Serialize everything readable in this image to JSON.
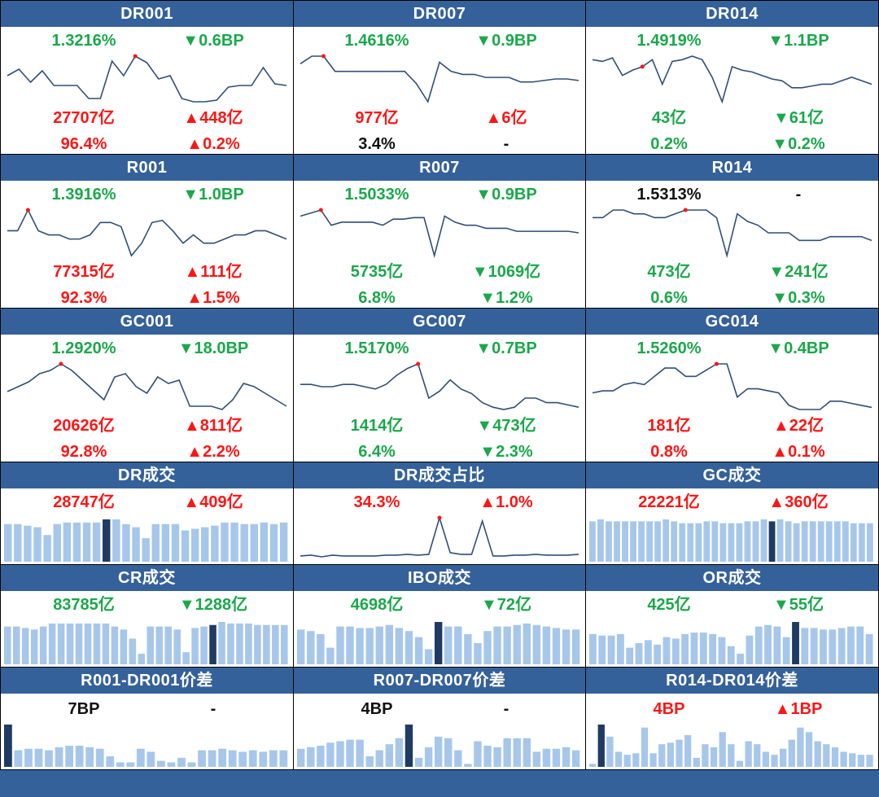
{
  "colors": {
    "header": "#35619a",
    "red": "#ff1515",
    "green": "#1aa84a",
    "line": "#2f4f78",
    "bar": "#a7c7ea",
    "bar_dark": "#1f3b63",
    "dot": "#ff1515"
  },
  "rate_panels": [
    {
      "id": "dr001",
      "title": "DR001",
      "rate": "1.3216%",
      "rate_color": "green",
      "bp": "▼0.6BP",
      "bp_color": "green",
      "vol": "27707亿",
      "vol_color": "red",
      "vol_chg": "▲448亿",
      "vol_chg_color": "red",
      "share": "96.4%",
      "share_color": "red",
      "share_chg": "▲0.2%",
      "share_chg_color": "red",
      "series": [
        62,
        66,
        58,
        65,
        56,
        56,
        56,
        48,
        48,
        71,
        62,
        74,
        70,
        60,
        62,
        48,
        46,
        46,
        47,
        55,
        56,
        56,
        67,
        57,
        56
      ],
      "peak": 11
    },
    {
      "id": "dr007",
      "title": "DR007",
      "rate": "1.4616%",
      "rate_color": "green",
      "bp": "▼0.9BP",
      "bp_color": "green",
      "vol": "977亿",
      "vol_color": "red",
      "vol_chg": "▲6亿",
      "vol_chg_color": "red",
      "share": "3.4%",
      "share_color": "neutral",
      "share_chg": "-",
      "share_chg_color": "neutral",
      "series": [
        67,
        72,
        72,
        62,
        62,
        62,
        62,
        62,
        62,
        62,
        54,
        42,
        68,
        62,
        60,
        60,
        58,
        58,
        58,
        55,
        55,
        56,
        57,
        57,
        56
      ],
      "peak": 2
    },
    {
      "id": "dr014",
      "title": "DR014",
      "rate": "1.4919%",
      "rate_color": "green",
      "bp": "▼1.1BP",
      "bp_color": "green",
      "vol": "43亿",
      "vol_color": "green",
      "vol_chg": "▼61亿",
      "vol_chg_color": "green",
      "share": "0.2%",
      "share_color": "green",
      "share_chg": "▼0.2%",
      "share_chg_color": "green",
      "series": [
        72,
        71,
        73,
        63,
        66,
        68,
        72,
        58,
        71,
        72,
        74,
        72,
        62,
        48,
        68,
        66,
        65,
        63,
        61,
        60,
        56,
        56,
        57,
        58,
        58,
        60,
        62,
        60,
        58
      ],
      "peak": 5
    },
    {
      "id": "r001",
      "title": "R001",
      "rate": "1.3916%",
      "rate_color": "green",
      "bp": "▼1.0BP",
      "bp_color": "green",
      "vol": "77315亿",
      "vol_color": "red",
      "vol_chg": "▲111亿",
      "vol_chg_color": "red",
      "share": "92.3%",
      "share_color": "red",
      "share_chg": "▲1.5%",
      "share_chg_color": "red",
      "series": [
        62,
        62,
        72,
        62,
        60,
        60,
        58,
        58,
        60,
        66,
        66,
        64,
        50,
        56,
        66,
        67,
        62,
        56,
        60,
        56,
        56,
        58,
        60,
        60,
        62,
        62,
        60,
        58
      ],
      "peak": 2
    },
    {
      "id": "r007",
      "title": "R007",
      "rate": "1.5033%",
      "rate_color": "green",
      "bp": "▼0.9BP",
      "bp_color": "green",
      "vol": "5735亿",
      "vol_color": "green",
      "vol_chg": "▼1069亿",
      "vol_chg_color": "green",
      "share": "6.8%",
      "share_color": "green",
      "share_chg": "▼1.2%",
      "share_chg_color": "green",
      "series": [
        68,
        70,
        72,
        62,
        64,
        64,
        64,
        64,
        62,
        66,
        66,
        67,
        67,
        42,
        68,
        64,
        62,
        62,
        60,
        60,
        60,
        58,
        58,
        58,
        58,
        58,
        58,
        57
      ],
      "peak": 2
    },
    {
      "id": "r014",
      "title": "R014",
      "rate": "1.5313%",
      "rate_color": "neutral",
      "bp": "-",
      "bp_color": "neutral",
      "vol": "473亿",
      "vol_color": "green",
      "vol_chg": "▼241亿",
      "vol_chg_color": "green",
      "share": "0.6%",
      "share_color": "green",
      "share_chg": "▼0.3%",
      "share_chg_color": "green",
      "series": [
        66,
        66,
        68,
        68,
        67,
        67,
        66,
        66,
        67,
        68,
        68,
        68,
        66,
        56,
        67,
        65,
        64,
        62,
        62,
        62,
        60,
        60,
        60,
        61,
        61,
        61,
        61,
        60
      ],
      "peak": 9
    },
    {
      "id": "gc001",
      "title": "GC001",
      "rate": "1.2920%",
      "rate_color": "green",
      "bp": "▼18.0BP",
      "bp_color": "green",
      "vol": "20626亿",
      "vol_color": "red",
      "vol_chg": "▲811亿",
      "vol_chg_color": "red",
      "share": "92.8%",
      "share_color": "red",
      "share_chg": "▲2.2%",
      "share_chg_color": "red",
      "series": [
        63,
        66,
        69,
        74,
        76,
        80,
        76,
        70,
        64,
        58,
        72,
        74,
        66,
        62,
        72,
        68,
        70,
        54,
        54,
        54,
        52,
        58,
        68,
        66,
        62,
        58,
        54
      ],
      "peak": 5
    },
    {
      "id": "gc007",
      "title": "GC007",
      "rate": "1.5170%",
      "rate_color": "green",
      "bp": "▼0.7BP",
      "bp_color": "green",
      "vol": "1414亿",
      "vol_color": "green",
      "vol_chg": "▼473亿",
      "vol_chg_color": "green",
      "share": "6.4%",
      "share_color": "green",
      "share_chg": "▼2.3%",
      "share_chg_color": "green",
      "series": [
        66,
        66,
        65,
        65,
        66,
        66,
        65,
        64,
        66,
        70,
        73,
        75,
        60,
        63,
        68,
        64,
        62,
        58,
        56,
        55,
        56,
        60,
        60,
        58,
        58,
        57,
        56
      ],
      "peak": 11
    },
    {
      "id": "gc014",
      "title": "GC014",
      "rate": "1.5260%",
      "rate_color": "green",
      "bp": "▼0.4BP",
      "bp_color": "green",
      "vol": "181亿",
      "vol_color": "red",
      "vol_chg": "▲22亿",
      "vol_chg_color": "red",
      "share": "0.8%",
      "share_color": "red",
      "share_chg": "▲0.1%",
      "share_chg_color": "red",
      "series": [
        62,
        63,
        63,
        66,
        67,
        66,
        70,
        74,
        74,
        70,
        70,
        73,
        76,
        76,
        60,
        64,
        64,
        63,
        62,
        56,
        54,
        54,
        54,
        58,
        58,
        57,
        56,
        55
      ],
      "peak": 12
    }
  ],
  "volume_panels": [
    {
      "id": "dr-vol",
      "title": "DR成交",
      "kind": "bar",
      "val1": "28747亿",
      "val1_color": "red",
      "val2": "▲409亿",
      "val2_color": "red",
      "bars": [
        48,
        48,
        46,
        44,
        34,
        48,
        50,
        50,
        50,
        50,
        54,
        54,
        48,
        44,
        30,
        48,
        48,
        48,
        40,
        42,
        44,
        46,
        50,
        50,
        48,
        48,
        50,
        48,
        50
      ],
      "highlight": 10
    },
    {
      "id": "dr-share",
      "title": "DR成交占比",
      "kind": "line",
      "val1": "34.3%",
      "val1_color": "red",
      "val2": "▲1.0%",
      "val2_color": "red",
      "series": [
        6,
        7,
        5,
        7,
        6,
        6,
        6,
        6,
        7,
        7,
        8,
        7,
        8,
        52,
        10,
        8,
        8,
        48,
        6,
        6,
        7,
        7,
        8,
        7,
        7,
        7,
        8
      ],
      "peak": 13
    },
    {
      "id": "gc-vol",
      "title": "GC成交",
      "kind": "bar",
      "val1": "22221亿",
      "val1_color": "red",
      "val2": "▲360亿",
      "val2_color": "red",
      "bars": [
        42,
        44,
        42,
        42,
        42,
        42,
        42,
        42,
        42,
        44,
        42,
        40,
        40,
        40,
        42,
        42,
        40,
        40,
        40,
        42,
        42,
        44,
        42,
        44,
        42,
        40,
        42,
        42,
        42,
        42,
        42,
        42,
        40,
        40,
        40
      ],
      "highlight": 22
    },
    {
      "id": "cr-vol",
      "title": "CR成交",
      "kind": "bar",
      "val1": "83785亿",
      "val1_color": "green",
      "val2": "▼1288亿",
      "val2_color": "green",
      "bars": [
        50,
        50,
        48,
        46,
        50,
        54,
        54,
        54,
        54,
        54,
        54,
        54,
        50,
        46,
        34,
        14,
        50,
        50,
        50,
        46,
        16,
        48,
        50,
        52,
        56,
        54,
        54,
        54,
        52,
        52,
        52,
        52
      ],
      "highlight": 23
    },
    {
      "id": "ibo-vol",
      "title": "IBO成交",
      "kind": "bar",
      "val1": "4698亿",
      "val1_color": "green",
      "val2": "▼72亿",
      "val2_color": "green",
      "bars": [
        46,
        44,
        40,
        22,
        50,
        50,
        48,
        48,
        50,
        52,
        48,
        44,
        36,
        20,
        56,
        50,
        50,
        40,
        28,
        44,
        50,
        50,
        52,
        54,
        52,
        50,
        48,
        46,
        46
      ],
      "highlight": 14
    },
    {
      "id": "or-vol",
      "title": "OR成交",
      "kind": "bar",
      "val1": "425亿",
      "val1_color": "green",
      "val2": "▼55亿",
      "val2_color": "green",
      "bars": [
        40,
        38,
        38,
        40,
        22,
        28,
        32,
        26,
        36,
        34,
        40,
        42,
        42,
        40,
        36,
        24,
        14,
        38,
        50,
        52,
        50,
        36,
        56,
        48,
        48,
        46,
        46,
        48,
        50,
        50,
        40
      ],
      "highlight": 22
    }
  ],
  "spread_panels": [
    {
      "id": "r001-dr001",
      "title": "R001-DR001价差",
      "val1": "7BP",
      "val1_color": "neutral",
      "val2": "-",
      "val2_color": "neutral",
      "bars": [
        56,
        22,
        24,
        24,
        22,
        26,
        28,
        28,
        26,
        24,
        14,
        6,
        6,
        24,
        20,
        8,
        6,
        12,
        6,
        22,
        22,
        24,
        22,
        20,
        22,
        20,
        22,
        22
      ],
      "highlight": 0
    },
    {
      "id": "r007-dr007",
      "title": "R007-DR007价差",
      "val1": "4BP",
      "val1_color": "neutral",
      "val2": "-",
      "val2_color": "neutral",
      "bars": [
        24,
        26,
        28,
        32,
        34,
        36,
        36,
        14,
        22,
        30,
        38,
        56,
        12,
        26,
        40,
        38,
        22,
        4,
        34,
        28,
        26,
        38,
        38,
        38,
        20,
        24,
        24,
        26,
        22
      ],
      "highlight": 11
    },
    {
      "id": "r014-dr014",
      "title": "R014-DR014价差",
      "val1": "4BP",
      "val1_color": "red",
      "val2": "▲1BP",
      "val2_color": "red",
      "bars": [
        4,
        56,
        40,
        20,
        16,
        18,
        52,
        18,
        30,
        32,
        36,
        42,
        12,
        30,
        26,
        46,
        30,
        8,
        34,
        30,
        20,
        16,
        24,
        36,
        52,
        46,
        34,
        30,
        26,
        20,
        18,
        16,
        16
      ],
      "highlight": 1
    }
  ]
}
